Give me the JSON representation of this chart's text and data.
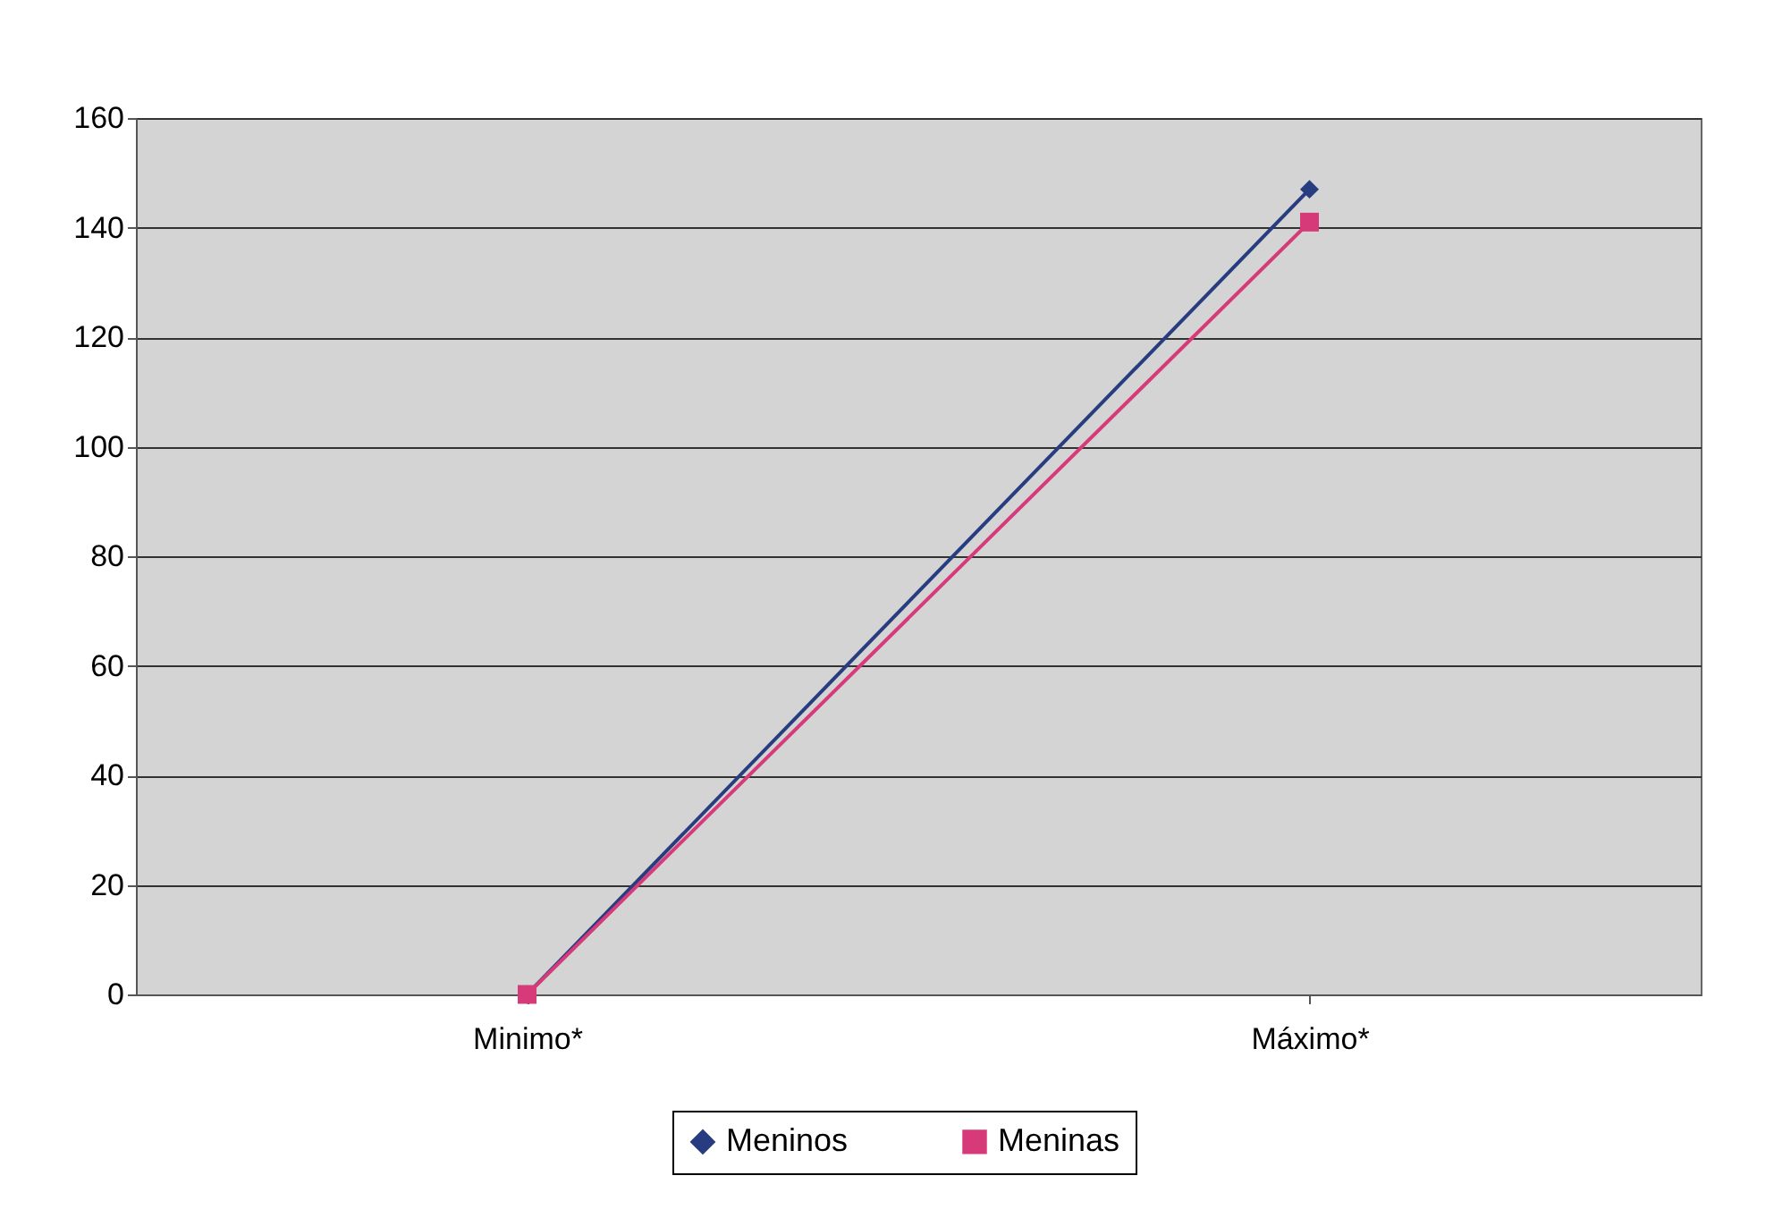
{
  "chart_data": {
    "type": "line",
    "categories": [
      "Minimo*",
      "Máximo*"
    ],
    "series": [
      {
        "name": "Meninos",
        "color": "#283c80",
        "marker": "diamond",
        "values": [
          0,
          147
        ]
      },
      {
        "name": "Meninas",
        "color": "#d63a78",
        "marker": "square",
        "values": [
          0,
          141
        ]
      }
    ],
    "ylim": [
      0,
      160
    ],
    "yticks": [
      0,
      20,
      40,
      60,
      80,
      100,
      120,
      140,
      160
    ],
    "grid": "y",
    "legend": "bottom"
  }
}
